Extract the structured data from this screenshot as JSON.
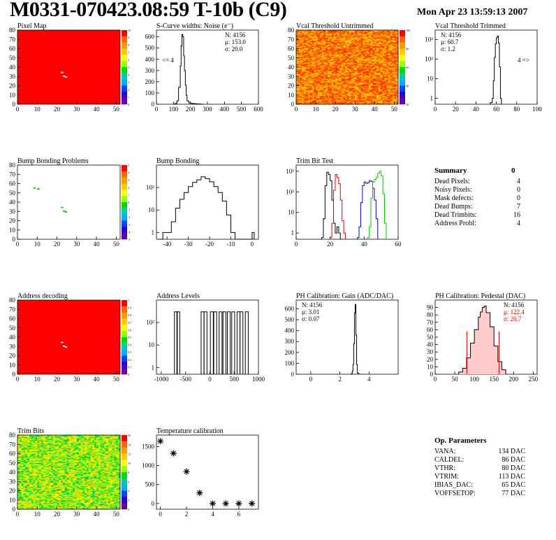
{
  "page": {
    "title": "M0331-070423.08:59 T-10b (C9)",
    "date": "Mon Apr 23 13:59:13 2007"
  },
  "colors": {
    "map_red": "#ff0000",
    "green": "#00c800",
    "blue": "#0000cc",
    "red": "#dd0000",
    "black": "#000000"
  },
  "chart_data": [
    {
      "id": "pixel-map",
      "type": "heatmap",
      "title": "Pixel Map",
      "xlim": [
        0,
        52
      ],
      "ylim": [
        0,
        80
      ],
      "xticks": [
        0,
        10,
        20,
        30,
        40,
        50
      ],
      "yticks": [
        0,
        10,
        20,
        30,
        40,
        50,
        60,
        70,
        80
      ],
      "zticks": [
        "10",
        "9",
        "8",
        "7",
        "6",
        "5",
        "4",
        "3",
        "2",
        "1",
        "0"
      ],
      "fill_color": "#ff0000",
      "marks": [
        [
          22,
          34,
          "#ffffff"
        ],
        [
          23,
          30,
          "#ffffff"
        ],
        [
          24,
          29,
          "#ffffff"
        ]
      ]
    },
    {
      "id": "noise",
      "type": "histogram",
      "title": "S-Curve widths: Noise (e⁻)",
      "xlim": [
        0,
        600
      ],
      "ylim": [
        0,
        660
      ],
      "xticks": [
        0,
        100,
        200,
        300,
        400,
        500,
        600
      ],
      "yticks": [
        0,
        100,
        200,
        300,
        400,
        500,
        600
      ],
      "stats": [
        "N: 4156",
        "μ: 153.0",
        "σ: 20.0"
      ],
      "annotation": "<= 4",
      "series": [
        {
          "color": "#000000",
          "x": [
            95,
            110,
            120,
            130,
            140,
            145,
            150,
            155,
            160,
            165,
            170,
            175,
            180,
            190,
            200,
            210,
            225,
            240,
            260,
            280
          ],
          "y": [
            0,
            6,
            30,
            150,
            340,
            520,
            620,
            600,
            430,
            300,
            170,
            80,
            30,
            12,
            8,
            6,
            4,
            2,
            0,
            0
          ]
        }
      ]
    },
    {
      "id": "vcal-untrimmed",
      "type": "heatmap",
      "title": "Vcal Threshold Untrimmed",
      "xlim": [
        0,
        52
      ],
      "ylim": [
        0,
        80
      ],
      "xticks": [
        0,
        10,
        20,
        30,
        40,
        50
      ],
      "yticks": [
        0,
        10,
        20,
        30,
        40,
        50,
        60,
        70,
        80
      ],
      "zticks": [
        "100",
        "80",
        "60",
        "40",
        "20"
      ],
      "palette": [
        "#ff2a00",
        "#ff4a00",
        "#ff6a00",
        "#ff8c00",
        "#ffae00",
        "#ffc800"
      ]
    },
    {
      "id": "vcal-trimmed",
      "type": "histogram",
      "title": "Vcal Threshold Trimmed",
      "log": true,
      "xlim": [
        0,
        100
      ],
      "ylim": [
        0.5,
        3000
      ],
      "xticks": [
        0,
        20,
        40,
        60,
        80,
        100
      ],
      "yticks": [
        1,
        10,
        100,
        1000
      ],
      "ylabels": [
        "1",
        "10",
        "10²",
        "10³"
      ],
      "stats": [
        "N: 4156",
        "μ: 60.7",
        "σ:  1.2"
      ],
      "annotation": "4 =>",
      "series": [
        {
          "color": "#000000",
          "x": [
            54,
            56,
            57,
            58,
            59,
            60,
            61,
            62,
            63,
            64,
            65
          ],
          "y": [
            0.6,
            1,
            8,
            120,
            600,
            1200,
            1500,
            650,
            40,
            1,
            0.6
          ]
        }
      ]
    },
    {
      "id": "bump-map",
      "type": "heatmap",
      "title": "Bump Bonding Problems",
      "xlim": [
        0,
        52
      ],
      "ylim": [
        0,
        80
      ],
      "xticks": [
        0,
        10,
        20,
        30,
        40,
        50
      ],
      "yticks": [
        0,
        10,
        20,
        30,
        40,
        50,
        60,
        70,
        80
      ],
      "zticks": [
        "5",
        "4",
        "3",
        "2",
        "1",
        "0",
        "-1",
        "-2",
        "-3",
        "-4",
        "-5"
      ],
      "fill_color": "#ffffff",
      "marks": [
        [
          8,
          55,
          "#00c800"
        ],
        [
          10,
          54,
          "#00c800"
        ],
        [
          22,
          34,
          "#00c800"
        ],
        [
          23,
          30,
          "#00c800"
        ],
        [
          24,
          29,
          "#00c800"
        ]
      ]
    },
    {
      "id": "bump-hist",
      "type": "histogram",
      "title": "Bump Bonding",
      "log": true,
      "xlim": [
        -45,
        3
      ],
      "ylim": [
        0.5,
        1000
      ],
      "xticks": [
        -40,
        -30,
        -20,
        -10,
        0
      ],
      "yticks": [
        1,
        10,
        100
      ],
      "ylabels": [
        "1",
        "10",
        "10²"
      ],
      "series": [
        {
          "color": "#000000",
          "x": [
            -44,
            -42,
            -40,
            -38,
            -36,
            -34,
            -32,
            -30,
            -28,
            -26,
            -24,
            -22,
            -20,
            -18,
            -16,
            -14,
            -12,
            -10,
            -8,
            -6,
            -4,
            -2,
            -1,
            0,
            1
          ],
          "y": [
            0.5,
            1,
            1,
            3,
            12,
            30,
            60,
            110,
            170,
            220,
            300,
            250,
            180,
            110,
            60,
            25,
            6,
            1,
            0.5,
            0.5,
            0.5,
            0.5,
            0.5,
            1,
            3
          ]
        }
      ]
    },
    {
      "id": "trim-bit-test",
      "type": "histogram",
      "title": "Trim Bit Test",
      "log": true,
      "xlim": [
        0,
        60
      ],
      "ylim": [
        0.5,
        2000
      ],
      "xticks": [
        0,
        20,
        40,
        60
      ],
      "yticks": [
        1,
        10,
        100,
        1000
      ],
      "ylabels": [
        "1",
        "10",
        "10²",
        "10³"
      ],
      "series": [
        {
          "color": "#000000",
          "x": [
            15,
            16,
            17,
            18,
            19,
            20,
            21,
            22,
            23,
            24,
            25,
            26
          ],
          "y": [
            0.6,
            5,
            200,
            900,
            700,
            350,
            40,
            3,
            1,
            2,
            1,
            0.6
          ]
        },
        {
          "color": "#dd0000",
          "x": [
            20,
            21,
            22,
            23,
            24,
            25,
            26,
            27,
            28,
            29
          ],
          "y": [
            0.6,
            3,
            120,
            700,
            500,
            250,
            40,
            4,
            1,
            0.6
          ]
        },
        {
          "color": "#0000cc",
          "x": [
            36,
            37,
            38,
            39,
            40,
            41,
            42,
            43,
            44,
            45,
            46,
            47,
            48
          ],
          "y": [
            0.6,
            2,
            30,
            200,
            300,
            260,
            280,
            350,
            320,
            150,
            40,
            5,
            0.6
          ]
        },
        {
          "color": "#00c800",
          "x": [
            42,
            43,
            44,
            45,
            46,
            47,
            48,
            49,
            50,
            51,
            52,
            53
          ],
          "y": [
            0.6,
            2,
            50,
            300,
            400,
            500,
            800,
            1000,
            600,
            80,
            3,
            0.6
          ]
        }
      ]
    },
    {
      "id": "address-decoding",
      "type": "heatmap",
      "title": "Address decoding",
      "xlim": [
        0,
        52
      ],
      "ylim": [
        0,
        80
      ],
      "xticks": [
        0,
        10,
        20,
        30,
        40,
        50
      ],
      "yticks": [
        0,
        10,
        20,
        30,
        40,
        50,
        60,
        70,
        80
      ],
      "zticks": [
        "1",
        "0.9",
        "0.8",
        "0.7",
        "0.6",
        "0.5",
        "0.4",
        "0.3",
        "0.2",
        "0.1",
        "0"
      ],
      "fill_color": "#ff0000",
      "marks": [
        [
          22,
          34,
          "#ffffff"
        ],
        [
          23,
          30,
          "#ffffff"
        ],
        [
          24,
          29,
          "#ffffff"
        ]
      ]
    },
    {
      "id": "address-levels",
      "type": "histogram",
      "title": "Address Levels",
      "log": true,
      "xlim": [
        -1100,
        1000
      ],
      "ylim": [
        0.5,
        1000
      ],
      "xticks": [
        -1000,
        -500,
        0,
        500,
        1000
      ],
      "yticks": [
        1,
        10,
        100
      ],
      "ylabels": [
        "1",
        "10",
        "10²"
      ],
      "peaks": [
        -700,
        -650,
        -150,
        -90,
        40,
        110,
        220,
        300,
        390,
        480,
        590,
        650,
        760
      ]
    },
    {
      "id": "ph-gain",
      "type": "histogram",
      "title": "PH Calibration: Gain (ADC/DAC)",
      "xlim": [
        -1,
        6
      ],
      "ylim": [
        0,
        680
      ],
      "xticks": [
        0,
        2,
        4
      ],
      "yticks": [
        0,
        100,
        200,
        300,
        400,
        500,
        600
      ],
      "stats": [
        "N: 4156",
        "μ: 3.01",
        "σ: 0.07"
      ],
      "series": [
        {
          "color": "#000000",
          "x": [
            2.7,
            2.8,
            2.85,
            2.9,
            2.95,
            3.0,
            3.05,
            3.1,
            3.15,
            3.2,
            3.3
          ],
          "y": [
            0,
            6,
            30,
            90,
            280,
            560,
            640,
            360,
            90,
            10,
            0
          ]
        }
      ]
    },
    {
      "id": "ph-pedestal",
      "type": "histogram",
      "title": "PH Calibration: Pedestal (DAC)",
      "xlim": [
        0,
        260
      ],
      "ylim": [
        0,
        100
      ],
      "xticks": [
        0,
        50,
        100,
        150,
        200,
        250
      ],
      "yticks": [
        0,
        10,
        20,
        30,
        40,
        50,
        60,
        70,
        80,
        90
      ],
      "stats": [
        "N: 4156",
        "μ: 122.4",
        "σ: 20.7"
      ],
      "red_lines": [
        81,
        163
      ],
      "series": [
        {
          "color": "#000000",
          "x": [
            60,
            70,
            80,
            90,
            100,
            110,
            115,
            120,
            125,
            130,
            140,
            150,
            160,
            170,
            180
          ],
          "y": [
            3,
            8,
            22,
            42,
            60,
            77,
            84,
            90,
            92,
            83,
            64,
            38,
            17,
            6,
            2
          ]
        }
      ]
    },
    {
      "id": "trim-bits",
      "type": "heatmap",
      "title": "Trim Bits",
      "xlim": [
        0,
        52
      ],
      "ylim": [
        0,
        80
      ],
      "xticks": [
        0,
        10,
        20,
        30,
        40,
        50
      ],
      "yticks": [
        0,
        10,
        20,
        30,
        40,
        50,
        60,
        70,
        80
      ],
      "zticks": [
        "16",
        "14",
        "12",
        "10",
        "8",
        "6",
        "4",
        "2",
        "0"
      ],
      "palette": [
        "#00cc44",
        "#33dd33",
        "#66ee22",
        "#99ff00",
        "#ccff00",
        "#ffee00",
        "#ffc800"
      ]
    },
    {
      "id": "temperature",
      "type": "scatter",
      "title": "Temperature calibration",
      "xlim": [
        -0.3,
        7.5
      ],
      "ylim": [
        -150,
        1800
      ],
      "xticks": [
        0,
        2,
        4,
        6
      ],
      "yticks": [
        0,
        500,
        1000,
        1500
      ],
      "x": [
        0,
        1,
        2,
        3,
        4,
        5,
        6,
        7
      ],
      "y": [
        1640,
        1320,
        840,
        280,
        0,
        0,
        0,
        0
      ]
    }
  ],
  "summary": {
    "title": "Summary",
    "total": "0",
    "rows": [
      {
        "label": "Dead Pixels:",
        "value": "4"
      },
      {
        "label": "Noisy Pixels:",
        "value": "0"
      },
      {
        "label": "Mask defects:",
        "value": "0"
      },
      {
        "label": "Dead Bumps:",
        "value": "7"
      },
      {
        "label": "Dead Trimbits:",
        "value": "16"
      },
      {
        "label": "Address Probl:",
        "value": "4"
      }
    ]
  },
  "op_params": {
    "title": "Op. Parameters",
    "rows": [
      {
        "label": "VANA:",
        "value": "134 DAC"
      },
      {
        "label": "CALDEL:",
        "value": "86 DAC"
      },
      {
        "label": "VTHR:",
        "value": "80 DAC"
      },
      {
        "label": "VTRIM:",
        "value": "113 DAC"
      },
      {
        "label": "IBIAS_DAC:",
        "value": "65 DAC"
      },
      {
        "label": "VOFFSETOP:",
        "value": "77 DAC"
      }
    ]
  }
}
